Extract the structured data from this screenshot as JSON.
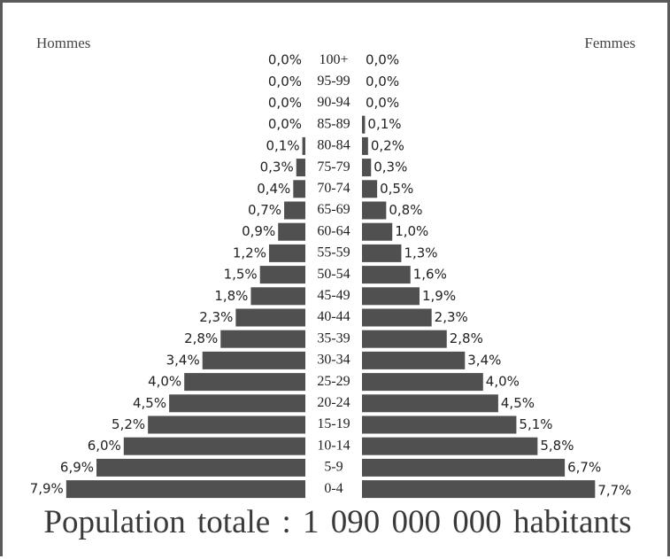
{
  "chart_data": {
    "type": "bar",
    "orientation": "horizontal",
    "left_label": "Hommes",
    "right_label": "Femmes",
    "categories": [
      "100+",
      "95-99",
      "90-94",
      "85-89",
      "80-84",
      "75-79",
      "70-74",
      "65-69",
      "60-64",
      "55-59",
      "50-54",
      "45-49",
      "40-44",
      "35-39",
      "30-34",
      "25-29",
      "20-24",
      "15-19",
      "10-14",
      "5-9",
      "0-4"
    ],
    "series": [
      {
        "name": "Hommes",
        "values": [
          0.0,
          0.0,
          0.0,
          0.0,
          0.1,
          0.3,
          0.4,
          0.7,
          0.9,
          1.2,
          1.5,
          1.8,
          2.3,
          2.8,
          3.4,
          4.0,
          4.5,
          5.2,
          6.0,
          6.9,
          7.9
        ],
        "labels": [
          "0,0%",
          "0,0%",
          "0,0%",
          "0,0%",
          "0,1%",
          "0,3%",
          "0,4%",
          "0,7%",
          "0,9%",
          "1,2%",
          "1,5%",
          "1,8%",
          "2,3%",
          "2,8%",
          "3,4%",
          "4,0%",
          "4,5%",
          "5,2%",
          "6,0%",
          "6,9%",
          "7,9%"
        ]
      },
      {
        "name": "Femmes",
        "values": [
          0.0,
          0.0,
          0.0,
          0.1,
          0.2,
          0.3,
          0.5,
          0.8,
          1.0,
          1.3,
          1.6,
          1.9,
          2.3,
          2.8,
          3.4,
          4.0,
          4.5,
          5.1,
          5.8,
          6.7,
          7.7
        ],
        "labels": [
          "0,0%",
          "0,0%",
          "0,0%",
          "0,1%",
          "0,2%",
          "0,3%",
          "0,5%",
          "0,8%",
          "1,0%",
          "1,3%",
          "1,6%",
          "1,9%",
          "2,3%",
          "2,8%",
          "3,4%",
          "4,0%",
          "4,5%",
          "5,1%",
          "5,8%",
          "6,7%",
          "7,7%"
        ]
      }
    ],
    "colors": {
      "bar": "#505050"
    },
    "footer": "Population totale : 1  090  000 000 habitants"
  }
}
